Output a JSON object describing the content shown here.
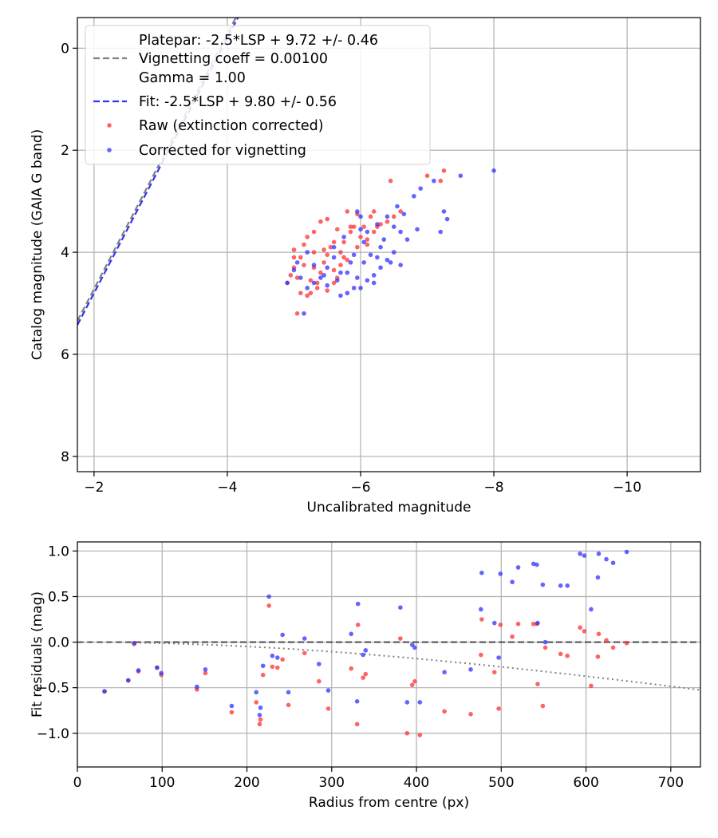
{
  "chart_data": [
    {
      "type": "scatter",
      "xlabel": "Uncalibrated magnitude",
      "ylabel": "Catalog magnitude (GAIA G band)",
      "xlim": [
        -1.75,
        -11.1
      ],
      "ylim": [
        8.3,
        -0.6
      ],
      "x_ticks": [
        -2,
        -4,
        -6,
        -8,
        -10
      ],
      "x_tick_labels": [
        "−2",
        "−4",
        "−6",
        "−8",
        "−10"
      ],
      "y_ticks": [
        0,
        2,
        4,
        6,
        8
      ],
      "y_tick_labels": [
        "0",
        "2",
        "4",
        "6",
        "8"
      ],
      "grid": true,
      "legend_position": "top-left",
      "legend": [
        {
          "kind": "none",
          "label": "Platepar: -2.5*LSP + 9.72 +/- 0.46"
        },
        {
          "kind": "dash",
          "color": "#808080",
          "label": "Vignetting coeff = 0.00100"
        },
        {
          "kind": "none",
          "label": "Gamma = 1.00"
        },
        {
          "kind": "dash",
          "color": "#3333ee",
          "label": "Fit: -2.5*LSP + 9.80 +/- 0.56"
        },
        {
          "kind": "dot",
          "color": "#ff3030",
          "label": "Raw (extinction corrected)"
        },
        {
          "kind": "dot",
          "color": "#3030ff",
          "label": "Corrected for vignetting"
        }
      ],
      "lines": [
        {
          "name": "Platepar",
          "slope": 2.5,
          "intercept": 9.72,
          "color": "#808080"
        },
        {
          "name": "Fit",
          "slope": 2.5,
          "intercept": 9.8,
          "color": "#3333ee"
        }
      ],
      "series": [
        {
          "name": "Raw (extinction corrected)",
          "color": "#ff3030",
          "points": [
            [
              -4.9,
              4.6
            ],
            [
              -5.0,
              4.3
            ],
            [
              -5.1,
              4.1
            ],
            [
              -5.05,
              4.5
            ],
            [
              -5.15,
              4.25
            ],
            [
              -5.25,
              4.55
            ],
            [
              -5.3,
              4.0
            ],
            [
              -5.35,
              4.7
            ],
            [
              -5.45,
              4.2
            ],
            [
              -5.5,
              4.75
            ],
            [
              -5.55,
              3.9
            ],
            [
              -5.6,
              4.35
            ],
            [
              -5.65,
              4.5
            ],
            [
              -5.7,
              4.0
            ],
            [
              -5.75,
              3.8
            ],
            [
              -5.8,
              4.15
            ],
            [
              -5.85,
              3.6
            ],
            [
              -5.9,
              3.5
            ],
            [
              -5.95,
              3.9
            ],
            [
              -6.0,
              3.7
            ],
            [
              -6.05,
              3.5
            ],
            [
              -6.1,
              3.75
            ],
            [
              -6.15,
              3.3
            ],
            [
              -6.2,
              3.6
            ],
            [
              -6.25,
              3.5
            ],
            [
              -6.3,
              3.45
            ],
            [
              -6.4,
              3.4
            ],
            [
              -6.5,
              3.3
            ],
            [
              -6.6,
              3.2
            ],
            [
              -6.45,
              2.6
            ],
            [
              -7.0,
              2.5
            ],
            [
              -7.2,
              2.6
            ],
            [
              -7.25,
              2.4
            ],
            [
              -5.4,
              3.4
            ],
            [
              -5.2,
              3.7
            ],
            [
              -5.0,
              3.95
            ],
            [
              -5.1,
              4.8
            ],
            [
              -5.2,
              4.85
            ],
            [
              -5.35,
              4.6
            ],
            [
              -5.8,
              3.2
            ],
            [
              -5.95,
              3.25
            ],
            [
              -5.65,
              3.55
            ],
            [
              -5.5,
              3.35
            ],
            [
              -5.3,
              3.6
            ],
            [
              -5.15,
              3.85
            ],
            [
              -5.5,
              4.05
            ],
            [
              -5.7,
              4.25
            ],
            [
              -5.6,
              4.6
            ],
            [
              -5.4,
              4.4
            ],
            [
              -5.25,
              4.8
            ],
            [
              -4.95,
              4.45
            ],
            [
              -5.05,
              5.2
            ],
            [
              -5.85,
              3.5
            ],
            [
              -6.1,
              3.85
            ],
            [
              -5.0,
              4.1
            ],
            [
              -5.6,
              3.8
            ],
            [
              -5.45,
              3.95
            ],
            [
              -5.75,
              4.1
            ],
            [
              -6.2,
              3.2
            ],
            [
              -5.3,
              4.3
            ]
          ]
        },
        {
          "name": "Corrected for vignetting",
          "color": "#3030ff",
          "points": [
            [
              -4.9,
              4.6
            ],
            [
              -5.0,
              4.35
            ],
            [
              -5.05,
              4.2
            ],
            [
              -5.1,
              4.5
            ],
            [
              -5.2,
              4.7
            ],
            [
              -5.15,
              5.2
            ],
            [
              -5.3,
              4.6
            ],
            [
              -5.5,
              4.3
            ],
            [
              -5.6,
              4.1
            ],
            [
              -5.7,
              4.85
            ],
            [
              -5.8,
              4.8
            ],
            [
              -5.9,
              4.7
            ],
            [
              -6.0,
              4.7
            ],
            [
              -6.1,
              4.55
            ],
            [
              -6.2,
              4.45
            ],
            [
              -6.3,
              4.3
            ],
            [
              -6.4,
              4.15
            ],
            [
              -6.5,
              4.0
            ],
            [
              -6.3,
              3.9
            ],
            [
              -6.1,
              3.6
            ],
            [
              -6.0,
              3.55
            ],
            [
              -5.95,
              3.2
            ],
            [
              -6.05,
              3.8
            ],
            [
              -6.25,
              3.45
            ],
            [
              -6.4,
              3.3
            ],
            [
              -6.55,
              3.1
            ],
            [
              -6.6,
              3.6
            ],
            [
              -6.65,
              3.25
            ],
            [
              -6.8,
              2.9
            ],
            [
              -6.9,
              2.75
            ],
            [
              -7.1,
              2.6
            ],
            [
              -7.25,
              3.2
            ],
            [
              -7.2,
              3.6
            ],
            [
              -6.85,
              3.55
            ],
            [
              -7.3,
              3.35
            ],
            [
              -7.5,
              2.5
            ],
            [
              -8.0,
              2.4
            ],
            [
              -5.85,
              4.2
            ],
            [
              -5.6,
              3.9
            ],
            [
              -5.75,
              3.7
            ],
            [
              -6.15,
              4.05
            ],
            [
              -5.65,
              4.55
            ],
            [
              -5.45,
              4.45
            ],
            [
              -5.8,
              4.4
            ],
            [
              -6.35,
              3.75
            ],
            [
              -6.5,
              3.5
            ],
            [
              -6.7,
              3.75
            ],
            [
              -5.95,
              4.5
            ],
            [
              -6.05,
              4.2
            ],
            [
              -5.5,
              4.65
            ],
            [
              -5.3,
              4.25
            ],
            [
              -5.2,
              4.0
            ],
            [
              -6.25,
              4.1
            ],
            [
              -6.45,
              4.2
            ],
            [
              -5.9,
              4.05
            ],
            [
              -6.6,
              4.25
            ],
            [
              -6.0,
              3.3
            ],
            [
              -5.4,
              4.5
            ],
            [
              -6.2,
              4.6
            ],
            [
              -5.7,
              4.4
            ]
          ]
        }
      ]
    },
    {
      "type": "scatter",
      "xlabel": "Radius from centre (px)",
      "ylabel": "Fit residuals (mag)",
      "xlim": [
        0,
        735
      ],
      "ylim": [
        -1.37,
        1.1
      ],
      "x_ticks": [
        0,
        100,
        200,
        300,
        400,
        500,
        600,
        700
      ],
      "x_tick_labels": [
        "0",
        "100",
        "200",
        "300",
        "400",
        "500",
        "600",
        "700"
      ],
      "y_ticks": [
        -1.0,
        -0.5,
        0.0,
        0.5,
        1.0
      ],
      "y_tick_labels": [
        "−1.0",
        "−0.5",
        "0.0",
        "0.5",
        "1.0"
      ],
      "grid": true,
      "reference_line": {
        "y": 0,
        "color": "#555555"
      },
      "vignetting_curve": {
        "coeff": 0.001,
        "color": "#808080"
      },
      "series": [
        {
          "name": "Raw (extinction corrected)",
          "color": "#ff3030",
          "points": [
            [
              32,
              -0.54
            ],
            [
              60,
              -0.42
            ],
            [
              67,
              -0.02
            ],
            [
              72,
              -0.32
            ],
            [
              94,
              -0.28
            ],
            [
              99,
              -0.36
            ],
            [
              141,
              -0.52
            ],
            [
              151,
              -0.34
            ],
            [
              182,
              -0.77
            ],
            [
              211,
              -0.66
            ],
            [
              215,
              -0.9
            ],
            [
              216,
              -0.85
            ],
            [
              219,
              -0.36
            ],
            [
              226,
              0.4
            ],
            [
              230,
              -0.27
            ],
            [
              236,
              -0.28
            ],
            [
              242,
              -0.19
            ],
            [
              249,
              -0.69
            ],
            [
              268,
              -0.12
            ],
            [
              285,
              -0.43
            ],
            [
              296,
              -0.73
            ],
            [
              323,
              -0.29
            ],
            [
              330,
              -0.9
            ],
            [
              331,
              0.19
            ],
            [
              337,
              -0.39
            ],
            [
              340,
              -0.35
            ],
            [
              381,
              0.04
            ],
            [
              389,
              -1.0
            ],
            [
              395,
              -0.47
            ],
            [
              398,
              -0.43
            ],
            [
              404,
              -1.02
            ],
            [
              433,
              -0.76
            ],
            [
              464,
              -0.79
            ],
            [
              476,
              -0.14
            ],
            [
              477,
              0.25
            ],
            [
              492,
              -0.33
            ],
            [
              497,
              -0.73
            ],
            [
              499,
              0.19
            ],
            [
              513,
              0.06
            ],
            [
              520,
              0.2
            ],
            [
              538,
              0.2
            ],
            [
              542,
              0.2
            ],
            [
              543,
              -0.46
            ],
            [
              549,
              -0.7
            ],
            [
              552,
              -0.06
            ],
            [
              570,
              -0.13
            ],
            [
              578,
              -0.15
            ],
            [
              593,
              0.16
            ],
            [
              598,
              0.12
            ],
            [
              606,
              -0.48
            ],
            [
              614,
              -0.16
            ],
            [
              615,
              0.09
            ],
            [
              624,
              0.02
            ],
            [
              632,
              -0.06
            ],
            [
              648,
              -0.01
            ]
          ]
        },
        {
          "name": "Corrected for vignetting",
          "color": "#3030ff",
          "points": [
            [
              32,
              -0.54
            ],
            [
              60,
              -0.42
            ],
            [
              67,
              -0.01
            ],
            [
              72,
              -0.31
            ],
            [
              94,
              -0.28
            ],
            [
              99,
              -0.34
            ],
            [
              141,
              -0.49
            ],
            [
              151,
              -0.3
            ],
            [
              182,
              -0.7
            ],
            [
              211,
              -0.55
            ],
            [
              215,
              -0.8
            ],
            [
              216,
              -0.72
            ],
            [
              219,
              -0.26
            ],
            [
              226,
              0.5
            ],
            [
              230,
              -0.15
            ],
            [
              236,
              -0.17
            ],
            [
              242,
              0.08
            ],
            [
              249,
              -0.55
            ],
            [
              268,
              0.04
            ],
            [
              285,
              -0.24
            ],
            [
              296,
              -0.53
            ],
            [
              323,
              0.09
            ],
            [
              330,
              -0.65
            ],
            [
              331,
              0.42
            ],
            [
              337,
              -0.14
            ],
            [
              340,
              -0.09
            ],
            [
              381,
              0.38
            ],
            [
              389,
              -0.66
            ],
            [
              395,
              -0.03
            ],
            [
              398,
              -0.06
            ],
            [
              404,
              -0.66
            ],
            [
              433,
              -0.33
            ],
            [
              464,
              -0.3
            ],
            [
              476,
              0.36
            ],
            [
              477,
              0.76
            ],
            [
              492,
              0.21
            ],
            [
              497,
              -0.17
            ],
            [
              499,
              0.75
            ],
            [
              513,
              0.66
            ],
            [
              520,
              0.82
            ],
            [
              538,
              0.86
            ],
            [
              542,
              0.85
            ],
            [
              543,
              0.21
            ],
            [
              549,
              0.63
            ],
            [
              552,
              0.0
            ],
            [
              570,
              0.62
            ],
            [
              578,
              0.62
            ],
            [
              593,
              0.97
            ],
            [
              598,
              0.95
            ],
            [
              606,
              0.36
            ],
            [
              614,
              0.71
            ],
            [
              615,
              0.97
            ],
            [
              624,
              0.91
            ],
            [
              632,
              0.87
            ],
            [
              648,
              0.99
            ]
          ]
        }
      ]
    }
  ]
}
